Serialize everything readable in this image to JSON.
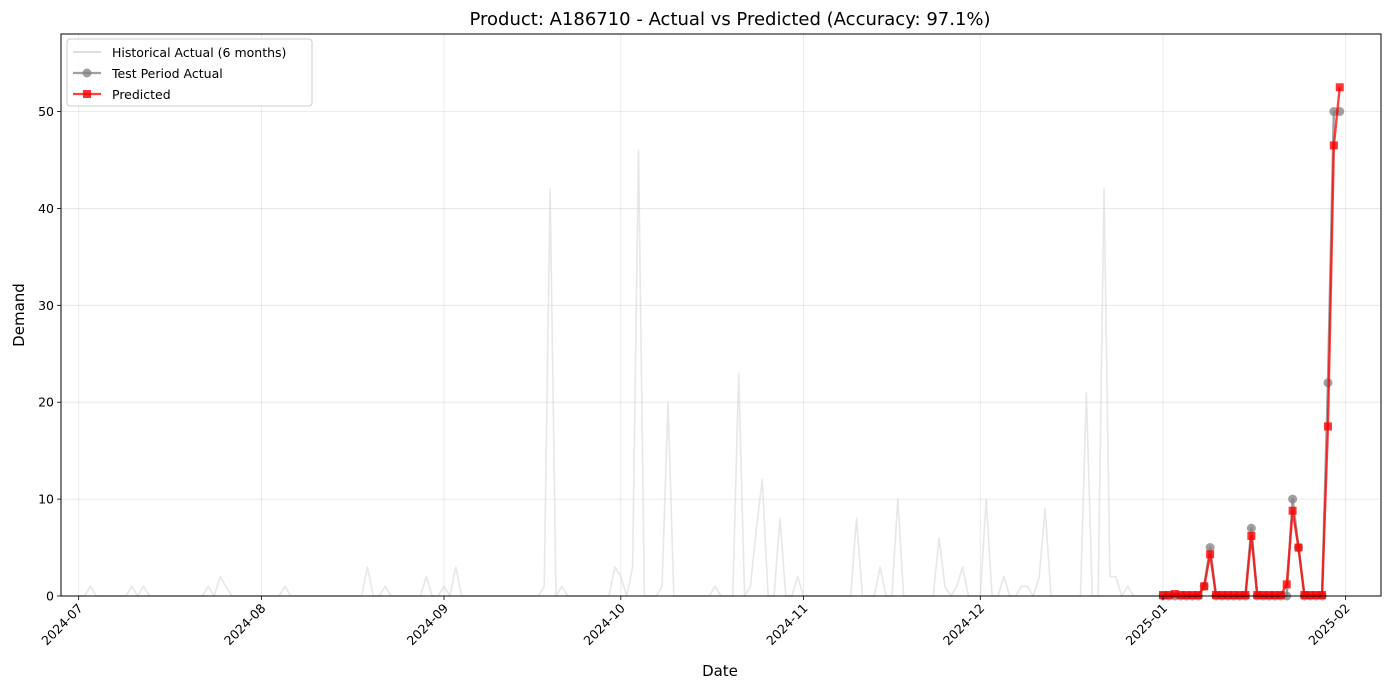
{
  "chart_data": {
    "type": "line",
    "title": "Product: A186710 - Actual vs Predicted (Accuracy: 97.1%)",
    "xlabel": "Date",
    "ylabel": "Demand",
    "xlim": [
      "2024-06-28",
      "2025-02-07"
    ],
    "ylim": [
      0,
      58
    ],
    "x_ticks": [
      "2024-07",
      "2024-08",
      "2024-09",
      "2024-10",
      "2024-11",
      "2024-12",
      "2025-01",
      "2025-02"
    ],
    "y_ticks": [
      "0",
      "10",
      "20",
      "30",
      "40",
      "50"
    ],
    "grid": true,
    "legend_position": "top-left",
    "series": [
      {
        "name": "Historical Actual (6 months)",
        "style": "line",
        "color": "#d3d3d3",
        "points": [
          [
            "2024-07-01",
            0
          ],
          [
            "2024-07-02",
            0
          ],
          [
            "2024-07-03",
            1
          ],
          [
            "2024-07-04",
            0
          ],
          [
            "2024-07-05",
            0
          ],
          [
            "2024-07-06",
            0
          ],
          [
            "2024-07-07",
            0
          ],
          [
            "2024-07-08",
            0
          ],
          [
            "2024-07-09",
            0
          ],
          [
            "2024-07-10",
            1
          ],
          [
            "2024-07-11",
            0
          ],
          [
            "2024-07-12",
            1
          ],
          [
            "2024-07-13",
            0
          ],
          [
            "2024-07-14",
            0
          ],
          [
            "2024-07-15",
            0
          ],
          [
            "2024-07-16",
            0
          ],
          [
            "2024-07-17",
            0
          ],
          [
            "2024-07-18",
            0
          ],
          [
            "2024-07-19",
            0
          ],
          [
            "2024-07-20",
            0
          ],
          [
            "2024-07-21",
            0
          ],
          [
            "2024-07-22",
            0
          ],
          [
            "2024-07-23",
            1
          ],
          [
            "2024-07-24",
            0
          ],
          [
            "2024-07-25",
            2
          ],
          [
            "2024-07-26",
            1
          ],
          [
            "2024-07-27",
            0
          ],
          [
            "2024-07-28",
            0
          ],
          [
            "2024-07-29",
            0
          ],
          [
            "2024-07-30",
            0
          ],
          [
            "2024-07-31",
            0
          ],
          [
            "2024-08-01",
            0
          ],
          [
            "2024-08-02",
            0
          ],
          [
            "2024-08-03",
            0
          ],
          [
            "2024-08-04",
            0
          ],
          [
            "2024-08-05",
            1
          ],
          [
            "2024-08-06",
            0
          ],
          [
            "2024-08-07",
            0
          ],
          [
            "2024-08-08",
            0
          ],
          [
            "2024-08-09",
            0
          ],
          [
            "2024-08-10",
            0
          ],
          [
            "2024-08-11",
            0
          ],
          [
            "2024-08-12",
            0
          ],
          [
            "2024-08-13",
            0
          ],
          [
            "2024-08-14",
            0
          ],
          [
            "2024-08-15",
            0
          ],
          [
            "2024-08-16",
            0
          ],
          [
            "2024-08-17",
            0
          ],
          [
            "2024-08-18",
            0
          ],
          [
            "2024-08-19",
            3
          ],
          [
            "2024-08-20",
            0
          ],
          [
            "2024-08-21",
            0
          ],
          [
            "2024-08-22",
            1
          ],
          [
            "2024-08-23",
            0
          ],
          [
            "2024-08-24",
            0
          ],
          [
            "2024-08-25",
            0
          ],
          [
            "2024-08-26",
            0
          ],
          [
            "2024-08-27",
            0
          ],
          [
            "2024-08-28",
            0
          ],
          [
            "2024-08-29",
            2
          ],
          [
            "2024-08-30",
            0
          ],
          [
            "2024-08-31",
            0
          ],
          [
            "2024-09-01",
            1
          ],
          [
            "2024-09-02",
            0
          ],
          [
            "2024-09-03",
            3
          ],
          [
            "2024-09-04",
            0
          ],
          [
            "2024-09-05",
            0
          ],
          [
            "2024-09-06",
            0
          ],
          [
            "2024-09-07",
            0
          ],
          [
            "2024-09-08",
            0
          ],
          [
            "2024-09-09",
            0
          ],
          [
            "2024-09-10",
            0
          ],
          [
            "2024-09-11",
            0
          ],
          [
            "2024-09-12",
            0
          ],
          [
            "2024-09-13",
            0
          ],
          [
            "2024-09-14",
            0
          ],
          [
            "2024-09-15",
            0
          ],
          [
            "2024-09-16",
            0
          ],
          [
            "2024-09-17",
            0
          ],
          [
            "2024-09-18",
            1
          ],
          [
            "2024-09-19",
            42
          ],
          [
            "2024-09-20",
            0
          ],
          [
            "2024-09-21",
            1
          ],
          [
            "2024-09-22",
            0
          ],
          [
            "2024-09-23",
            0
          ],
          [
            "2024-09-24",
            0
          ],
          [
            "2024-09-25",
            0
          ],
          [
            "2024-09-26",
            0
          ],
          [
            "2024-09-27",
            0
          ],
          [
            "2024-09-28",
            0
          ],
          [
            "2024-09-29",
            0
          ],
          [
            "2024-09-30",
            3
          ],
          [
            "2024-10-01",
            2
          ],
          [
            "2024-10-02",
            0
          ],
          [
            "2024-10-03",
            3
          ],
          [
            "2024-10-04",
            46
          ],
          [
            "2024-10-05",
            0
          ],
          [
            "2024-10-06",
            0
          ],
          [
            "2024-10-07",
            0
          ],
          [
            "2024-10-08",
            1
          ],
          [
            "2024-10-09",
            20
          ],
          [
            "2024-10-10",
            0
          ],
          [
            "2024-10-11",
            0
          ],
          [
            "2024-10-12",
            0
          ],
          [
            "2024-10-13",
            0
          ],
          [
            "2024-10-14",
            0
          ],
          [
            "2024-10-15",
            0
          ],
          [
            "2024-10-16",
            0
          ],
          [
            "2024-10-17",
            1
          ],
          [
            "2024-10-18",
            0
          ],
          [
            "2024-10-19",
            0
          ],
          [
            "2024-10-20",
            0
          ],
          [
            "2024-10-21",
            23
          ],
          [
            "2024-10-22",
            0
          ],
          [
            "2024-10-23",
            1
          ],
          [
            "2024-10-24",
            7
          ],
          [
            "2024-10-25",
            12
          ],
          [
            "2024-10-26",
            0
          ],
          [
            "2024-10-27",
            0
          ],
          [
            "2024-10-28",
            8
          ],
          [
            "2024-10-29",
            0
          ],
          [
            "2024-10-30",
            0
          ],
          [
            "2024-10-31",
            2
          ],
          [
            "2024-11-01",
            0
          ],
          [
            "2024-11-02",
            0
          ],
          [
            "2024-11-03",
            0
          ],
          [
            "2024-11-04",
            0
          ],
          [
            "2024-11-05",
            0
          ],
          [
            "2024-11-06",
            0
          ],
          [
            "2024-11-07",
            0
          ],
          [
            "2024-11-08",
            0
          ],
          [
            "2024-11-09",
            0
          ],
          [
            "2024-11-10",
            8
          ],
          [
            "2024-11-11",
            0
          ],
          [
            "2024-11-12",
            0
          ],
          [
            "2024-11-13",
            0
          ],
          [
            "2024-11-14",
            3
          ],
          [
            "2024-11-15",
            0
          ],
          [
            "2024-11-16",
            0
          ],
          [
            "2024-11-17",
            10
          ],
          [
            "2024-11-18",
            0
          ],
          [
            "2024-11-19",
            0
          ],
          [
            "2024-11-20",
            0
          ],
          [
            "2024-11-21",
            0
          ],
          [
            "2024-11-22",
            0
          ],
          [
            "2024-11-23",
            0
          ],
          [
            "2024-11-24",
            6
          ],
          [
            "2024-11-25",
            1
          ],
          [
            "2024-11-26",
            0
          ],
          [
            "2024-11-27",
            1
          ],
          [
            "2024-11-28",
            3
          ],
          [
            "2024-11-29",
            0
          ],
          [
            "2024-11-30",
            0
          ],
          [
            "2024-12-01",
            0
          ],
          [
            "2024-12-02",
            10
          ],
          [
            "2024-12-03",
            0
          ],
          [
            "2024-12-04",
            0
          ],
          [
            "2024-12-05",
            2
          ],
          [
            "2024-12-06",
            0
          ],
          [
            "2024-12-07",
            0
          ],
          [
            "2024-12-08",
            1
          ],
          [
            "2024-12-09",
            1
          ],
          [
            "2024-12-10",
            0
          ],
          [
            "2024-12-11",
            2
          ],
          [
            "2024-12-12",
            9
          ],
          [
            "2024-12-13",
            0
          ],
          [
            "2024-12-14",
            0
          ],
          [
            "2024-12-15",
            0
          ],
          [
            "2024-12-16",
            0
          ],
          [
            "2024-12-17",
            0
          ],
          [
            "2024-12-18",
            0
          ],
          [
            "2024-12-19",
            21
          ],
          [
            "2024-12-20",
            0
          ],
          [
            "2024-12-21",
            0
          ],
          [
            "2024-12-22",
            42
          ],
          [
            "2024-12-23",
            2
          ],
          [
            "2024-12-24",
            2
          ],
          [
            "2024-12-25",
            0
          ],
          [
            "2024-12-26",
            1
          ],
          [
            "2024-12-27",
            0
          ],
          [
            "2024-12-28",
            0
          ],
          [
            "2024-12-29",
            0
          ],
          [
            "2024-12-30",
            0
          ],
          [
            "2024-12-31",
            0
          ]
        ]
      },
      {
        "name": "Test Period Actual",
        "style": "line-circle",
        "color": "#808080",
        "points": [
          [
            "2025-01-01",
            0
          ],
          [
            "2025-01-02",
            0
          ],
          [
            "2025-01-03",
            0
          ],
          [
            "2025-01-04",
            0
          ],
          [
            "2025-01-05",
            0
          ],
          [
            "2025-01-06",
            0
          ],
          [
            "2025-01-07",
            0
          ],
          [
            "2025-01-08",
            1
          ],
          [
            "2025-01-09",
            5
          ],
          [
            "2025-01-10",
            0
          ],
          [
            "2025-01-11",
            0
          ],
          [
            "2025-01-12",
            0
          ],
          [
            "2025-01-13",
            0
          ],
          [
            "2025-01-14",
            0
          ],
          [
            "2025-01-15",
            0
          ],
          [
            "2025-01-16",
            7
          ],
          [
            "2025-01-17",
            0
          ],
          [
            "2025-01-18",
            0
          ],
          [
            "2025-01-19",
            0
          ],
          [
            "2025-01-20",
            0
          ],
          [
            "2025-01-21",
            0
          ],
          [
            "2025-01-22",
            0
          ],
          [
            "2025-01-23",
            10
          ],
          [
            "2025-01-24",
            5
          ],
          [
            "2025-01-25",
            0
          ],
          [
            "2025-01-26",
            0
          ],
          [
            "2025-01-27",
            0
          ],
          [
            "2025-01-28",
            0
          ],
          [
            "2025-01-29",
            22
          ],
          [
            "2025-01-30",
            50
          ],
          [
            "2025-01-31",
            50
          ]
        ]
      },
      {
        "name": "Predicted",
        "style": "line-square",
        "color": "#ff0000",
        "points": [
          [
            "2025-01-01",
            0.1
          ],
          [
            "2025-01-02",
            0.1
          ],
          [
            "2025-01-03",
            0.2
          ],
          [
            "2025-01-04",
            0.1
          ],
          [
            "2025-01-05",
            0.1
          ],
          [
            "2025-01-06",
            0.1
          ],
          [
            "2025-01-07",
            0.1
          ],
          [
            "2025-01-08",
            1
          ],
          [
            "2025-01-09",
            4.3
          ],
          [
            "2025-01-10",
            0.1
          ],
          [
            "2025-01-11",
            0.1
          ],
          [
            "2025-01-12",
            0.1
          ],
          [
            "2025-01-13",
            0.1
          ],
          [
            "2025-01-14",
            0.1
          ],
          [
            "2025-01-15",
            0.1
          ],
          [
            "2025-01-16",
            6.2
          ],
          [
            "2025-01-17",
            0.1
          ],
          [
            "2025-01-18",
            0.1
          ],
          [
            "2025-01-19",
            0.1
          ],
          [
            "2025-01-20",
            0.1
          ],
          [
            "2025-01-21",
            0.1
          ],
          [
            "2025-01-22",
            1.2
          ],
          [
            "2025-01-23",
            8.8
          ],
          [
            "2025-01-24",
            5
          ],
          [
            "2025-01-25",
            0.1
          ],
          [
            "2025-01-26",
            0.1
          ],
          [
            "2025-01-27",
            0.1
          ],
          [
            "2025-01-28",
            0.1
          ],
          [
            "2025-01-29",
            17.5
          ],
          [
            "2025-01-30",
            46.5
          ],
          [
            "2025-01-31",
            52.5
          ]
        ]
      }
    ]
  }
}
